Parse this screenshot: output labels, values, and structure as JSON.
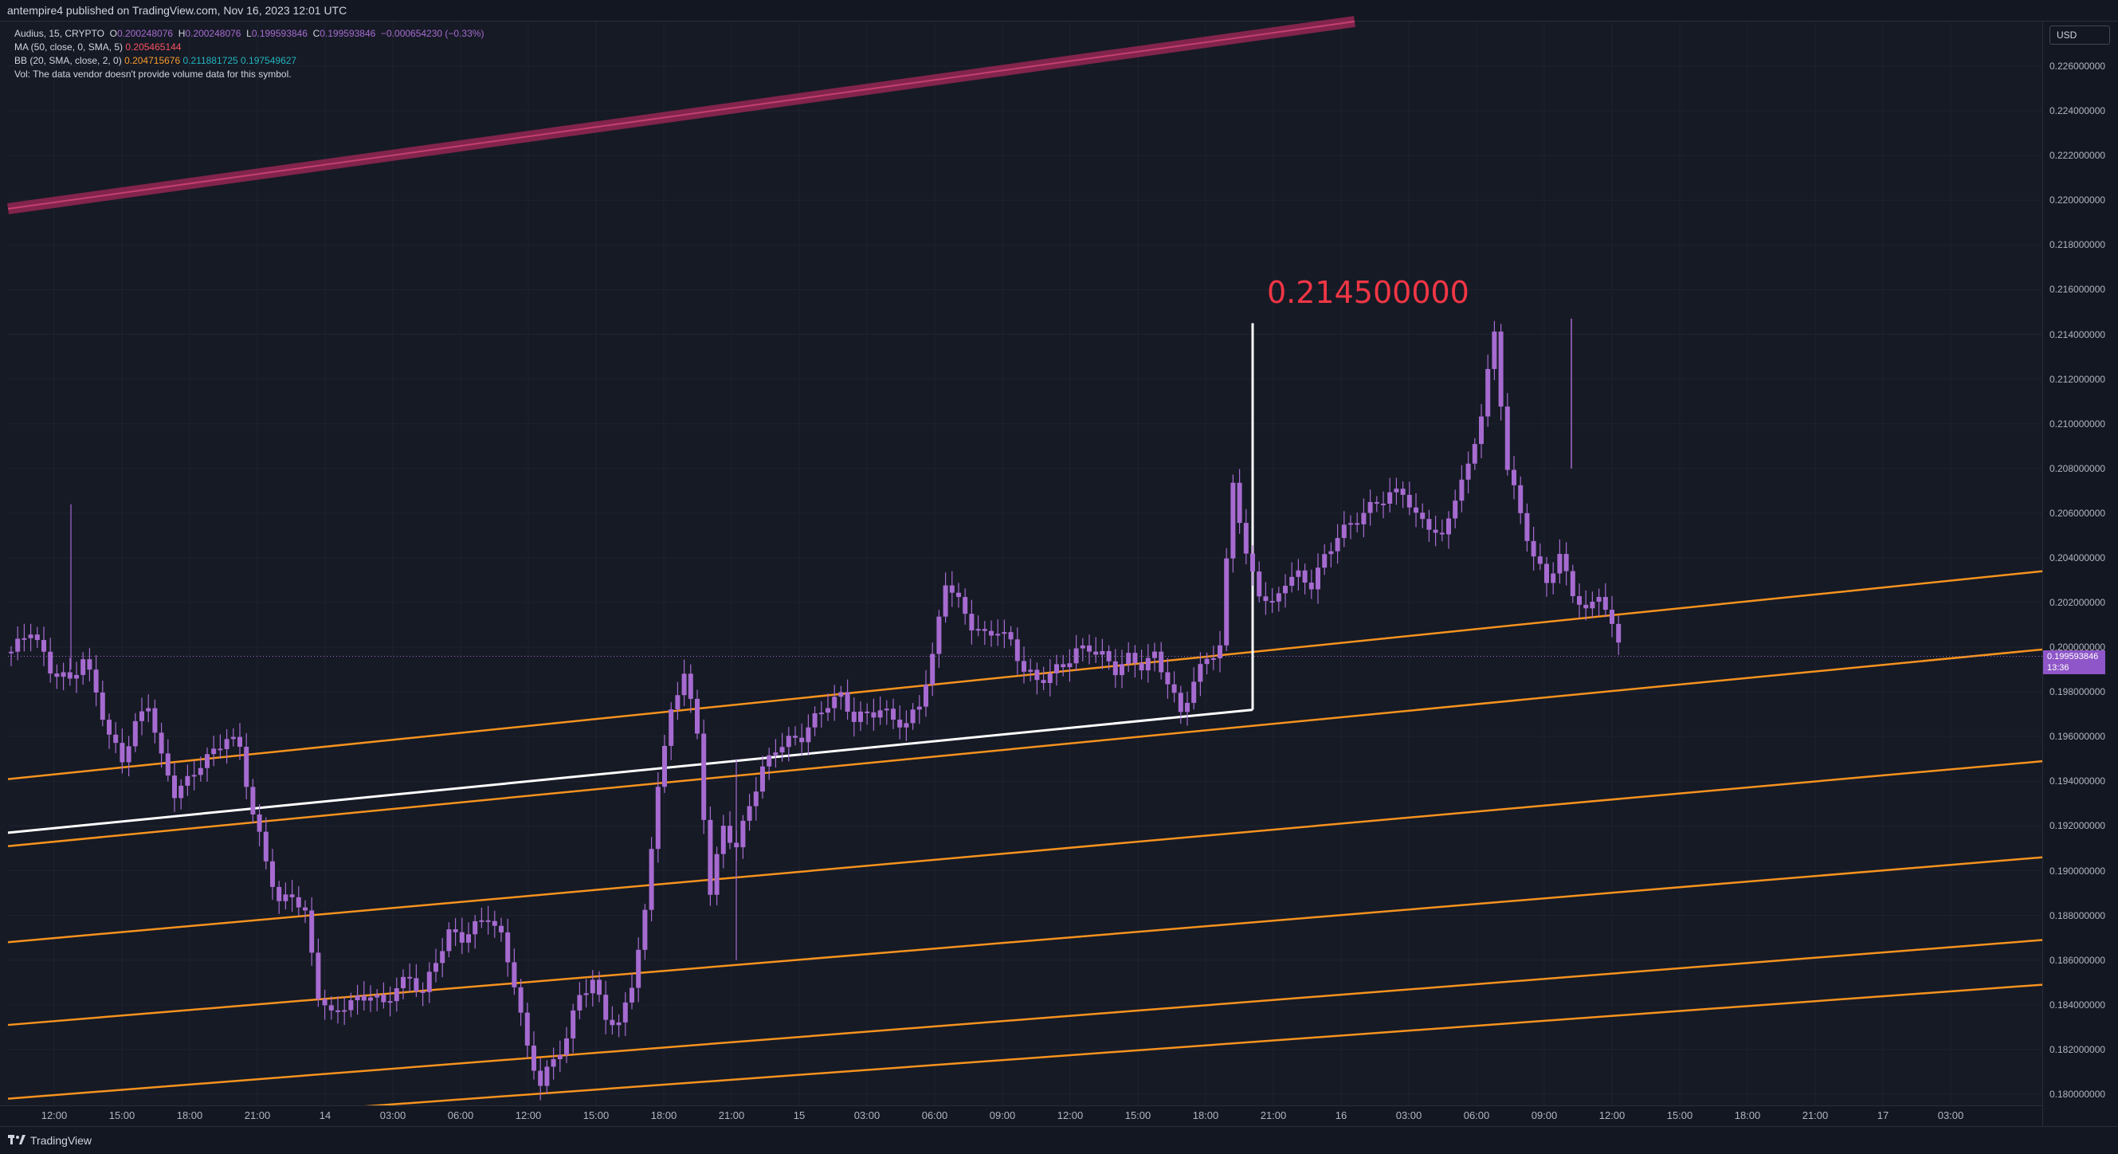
{
  "header": {
    "published": "antempire4 published on TradingView.com, Nov 16, 2023 12:01 UTC"
  },
  "legend": {
    "symbol": "Audius, 15, CRYPTO",
    "o_label": "O",
    "o_value": "0.200248076",
    "h_label": "H",
    "h_value": "0.200248076",
    "l_label": "L",
    "l_value": "0.199593846",
    "c_label": "C",
    "c_value": "0.199593846",
    "change": "−0.000654230 (−0.33%)",
    "ma_label": "MA (50, close, 0, SMA, 5)",
    "ma_value": "0.205465144",
    "bb_label": "BB (20, SMA, close, 2, 0)",
    "bb_mid": "0.204715676",
    "bb_up": "0.211881725",
    "bb_low": "0.197549627",
    "vol_text": "Vol: The data vendor doesn't provide volume data for this symbol."
  },
  "price_axis": {
    "currency": "USD",
    "ticks": [
      "0.226000000",
      "0.224000000",
      "0.222000000",
      "0.220000000",
      "0.218000000",
      "0.216000000",
      "0.214000000",
      "0.212000000",
      "0.210000000",
      "0.208000000",
      "0.206000000",
      "0.204000000",
      "0.202000000",
      "0.200000000",
      "0.198000000",
      "0.196000000",
      "0.194000000",
      "0.192000000",
      "0.190000000",
      "0.188000000",
      "0.186000000",
      "0.184000000",
      "0.182000000",
      "0.180000000"
    ],
    "current_price": "0.199593846",
    "countdown": "13:36"
  },
  "time_axis": {
    "ticks": [
      "12:00",
      "15:00",
      "18:00",
      "21:00",
      "14",
      "03:00",
      "06:00",
      "12:00",
      "15:00",
      "18:00",
      "21:00",
      "15",
      "03:00",
      "06:00",
      "09:00",
      "12:00",
      "15:00",
      "18:00",
      "21:00",
      "16",
      "03:00",
      "06:00",
      "09:00",
      "12:00",
      "15:00",
      "18:00",
      "21:00",
      "17",
      "03:00"
    ]
  },
  "annotation": {
    "target_label": "0.214500000"
  },
  "footer": {
    "brand": "TradingView"
  },
  "colors": {
    "background": "#161a25",
    "candle": "#a66bd0",
    "channel": "#f7931e",
    "white_line": "#ffffff",
    "target_text": "#f23645",
    "pink_band": "#b02a5b"
  },
  "chart_data": {
    "type": "candlestick",
    "title": "Audius, 15, CRYPTO",
    "ylim": [
      0.1795,
      0.2265
    ],
    "candles_close_path": [
      [
        0,
        0.1998
      ],
      [
        3,
        0.2008
      ],
      [
        6,
        0.199
      ],
      [
        9,
        0.1985
      ],
      [
        11,
        0.1995
      ],
      [
        13,
        0.198
      ],
      [
        15,
        0.196
      ],
      [
        17,
        0.195
      ],
      [
        19,
        0.1965
      ],
      [
        21,
        0.1975
      ],
      [
        23,
        0.195
      ],
      [
        25,
        0.1935
      ],
      [
        27,
        0.194
      ],
      [
        29,
        0.1948
      ],
      [
        31,
        0.1953
      ],
      [
        33,
        0.196
      ],
      [
        35,
        0.1955
      ],
      [
        37,
        0.1925
      ],
      [
        39,
        0.1905
      ],
      [
        41,
        0.1885
      ],
      [
        43,
        0.189
      ],
      [
        45,
        0.188
      ],
      [
        47,
        0.1845
      ],
      [
        49,
        0.1835
      ],
      [
        51,
        0.184
      ],
      [
        53,
        0.1842
      ],
      [
        55,
        0.1845
      ],
      [
        57,
        0.184
      ],
      [
        59,
        0.1848
      ],
      [
        61,
        0.1852
      ],
      [
        63,
        0.1845
      ],
      [
        65,
        0.186
      ],
      [
        67,
        0.1872
      ],
      [
        69,
        0.187
      ],
      [
        71,
        0.1875
      ],
      [
        73,
        0.188
      ],
      [
        75,
        0.187
      ],
      [
        77,
        0.185
      ],
      [
        79,
        0.182
      ],
      [
        81,
        0.1805
      ],
      [
        83,
        0.1815
      ],
      [
        85,
        0.1825
      ],
      [
        87,
        0.1845
      ],
      [
        89,
        0.185
      ],
      [
        91,
        0.1835
      ],
      [
        93,
        0.183
      ],
      [
        95,
        0.185
      ],
      [
        97,
        0.188
      ],
      [
        99,
        0.194
      ],
      [
        101,
        0.197
      ],
      [
        103,
        0.199
      ],
      [
        105,
        0.196
      ],
      [
        107,
        0.189
      ],
      [
        109,
        0.192
      ],
      [
        111,
        0.191
      ],
      [
        113,
        0.193
      ],
      [
        115,
        0.1945
      ],
      [
        117,
        0.1955
      ],
      [
        119,
        0.1958
      ],
      [
        121,
        0.196
      ],
      [
        123,
        0.1968
      ],
      [
        125,
        0.1975
      ],
      [
        127,
        0.1978
      ],
      [
        129,
        0.1968
      ],
      [
        131,
        0.197
      ],
      [
        133,
        0.1972
      ],
      [
        135,
        0.1968
      ],
      [
        137,
        0.1965
      ],
      [
        139,
        0.1975
      ],
      [
        141,
        0.1995
      ],
      [
        143,
        0.203
      ],
      [
        145,
        0.202
      ],
      [
        147,
        0.201
      ],
      [
        149,
        0.2005
      ],
      [
        151,
        0.2008
      ],
      [
        153,
        0.2002
      ],
      [
        155,
        0.199
      ],
      [
        157,
        0.1985
      ],
      [
        159,
        0.1988
      ],
      [
        161,
        0.1992
      ],
      [
        163,
        0.1998
      ],
      [
        165,
        0.2
      ],
      [
        167,
        0.1996
      ],
      [
        169,
        0.199
      ],
      [
        171,
        0.1995
      ],
      [
        173,
        0.1992
      ],
      [
        175,
        0.1996
      ],
      [
        177,
        0.1985
      ],
      [
        179,
        0.197
      ],
      [
        181,
        0.1985
      ],
      [
        183,
        0.1995
      ],
      [
        185,
        0.2
      ],
      [
        187,
        0.2075
      ],
      [
        189,
        0.204
      ],
      [
        191,
        0.2025
      ],
      [
        193,
        0.2018
      ],
      [
        195,
        0.203
      ],
      [
        197,
        0.2032
      ],
      [
        199,
        0.2028
      ],
      [
        201,
        0.204
      ],
      [
        203,
        0.205
      ],
      [
        205,
        0.2055
      ],
      [
        207,
        0.206
      ],
      [
        209,
        0.2065
      ],
      [
        211,
        0.2068
      ],
      [
        213,
        0.207
      ],
      [
        215,
        0.2058
      ],
      [
        217,
        0.2055
      ],
      [
        219,
        0.2048
      ],
      [
        221,
        0.2068
      ],
      [
        223,
        0.208
      ],
      [
        225,
        0.2105
      ],
      [
        227,
        0.214
      ],
      [
        229,
        0.208
      ],
      [
        231,
        0.206
      ],
      [
        233,
        0.204
      ],
      [
        235,
        0.203
      ],
      [
        237,
        0.204
      ],
      [
        239,
        0.2025
      ],
      [
        241,
        0.2015
      ],
      [
        243,
        0.2025
      ],
      [
        245,
        0.2008
      ],
      [
        247,
        0.1998
      ]
    ],
    "channel_lines": [
      [
        0.1941,
        0.2034
      ],
      [
        0.1911,
        0.1999
      ],
      [
        0.1868,
        0.1949
      ],
      [
        0.1831,
        0.1906
      ],
      [
        0.1798,
        0.1869
      ],
      [
        0.1783,
        0.1849
      ]
    ],
    "white_trend_line": [
      0.1917,
      0.1972
    ],
    "target_level": 0.2145
  }
}
